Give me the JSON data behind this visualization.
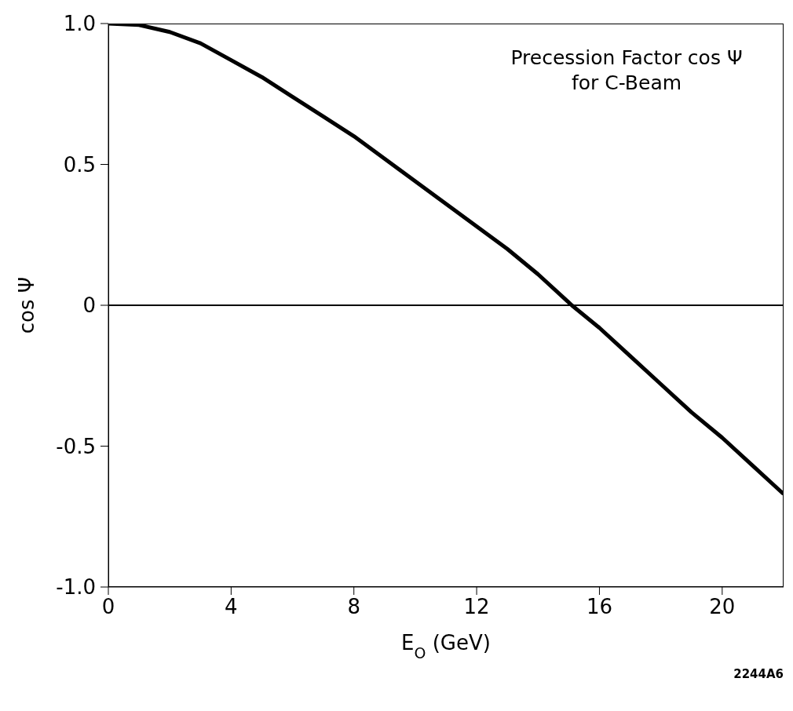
{
  "chart_data": {
    "type": "line",
    "xlabel": "E$_{O}$ (GeV)",
    "ylabel": "cos Ψ",
    "annotations": [
      "Precession Factor cos Ψ\nfor C-Beam",
      "2244A6"
    ],
    "x": [
      0,
      1,
      2,
      3,
      4,
      5,
      6,
      7,
      8,
      9,
      10,
      11,
      12,
      13,
      14,
      15,
      15.1,
      16,
      17,
      18,
      19,
      20,
      21,
      22
    ],
    "series": [
      {
        "color": "#000000",
        "values": [
          1.0,
          0.995,
          0.97,
          0.93,
          0.87,
          0.81,
          0.74,
          0.67,
          0.6,
          0.52,
          0.44,
          0.36,
          0.28,
          0.2,
          0.11,
          0.01,
          0.0,
          -0.08,
          -0.18,
          -0.28,
          -0.38,
          -0.47,
          -0.57,
          -0.67
        ]
      }
    ],
    "xlim": [
      0,
      22
    ],
    "xticks": [
      0,
      4,
      8,
      12,
      16,
      20
    ],
    "ylim": [
      -1,
      1
    ],
    "yticks": [
      {
        "value": -1,
        "label": "-1.0"
      },
      {
        "value": -0.5,
        "label": "-0.5"
      },
      0,
      {
        "value": 0.5,
        "label": "0.5"
      },
      {
        "value": 1,
        "label": "1.0"
      }
    ],
    "ref_lines": [
      {
        "axis": "y",
        "value": 0,
        "color": "#000000"
      }
    ],
    "grid": false,
    "legend": false,
    "marker": "none",
    "line_style": "solid"
  }
}
